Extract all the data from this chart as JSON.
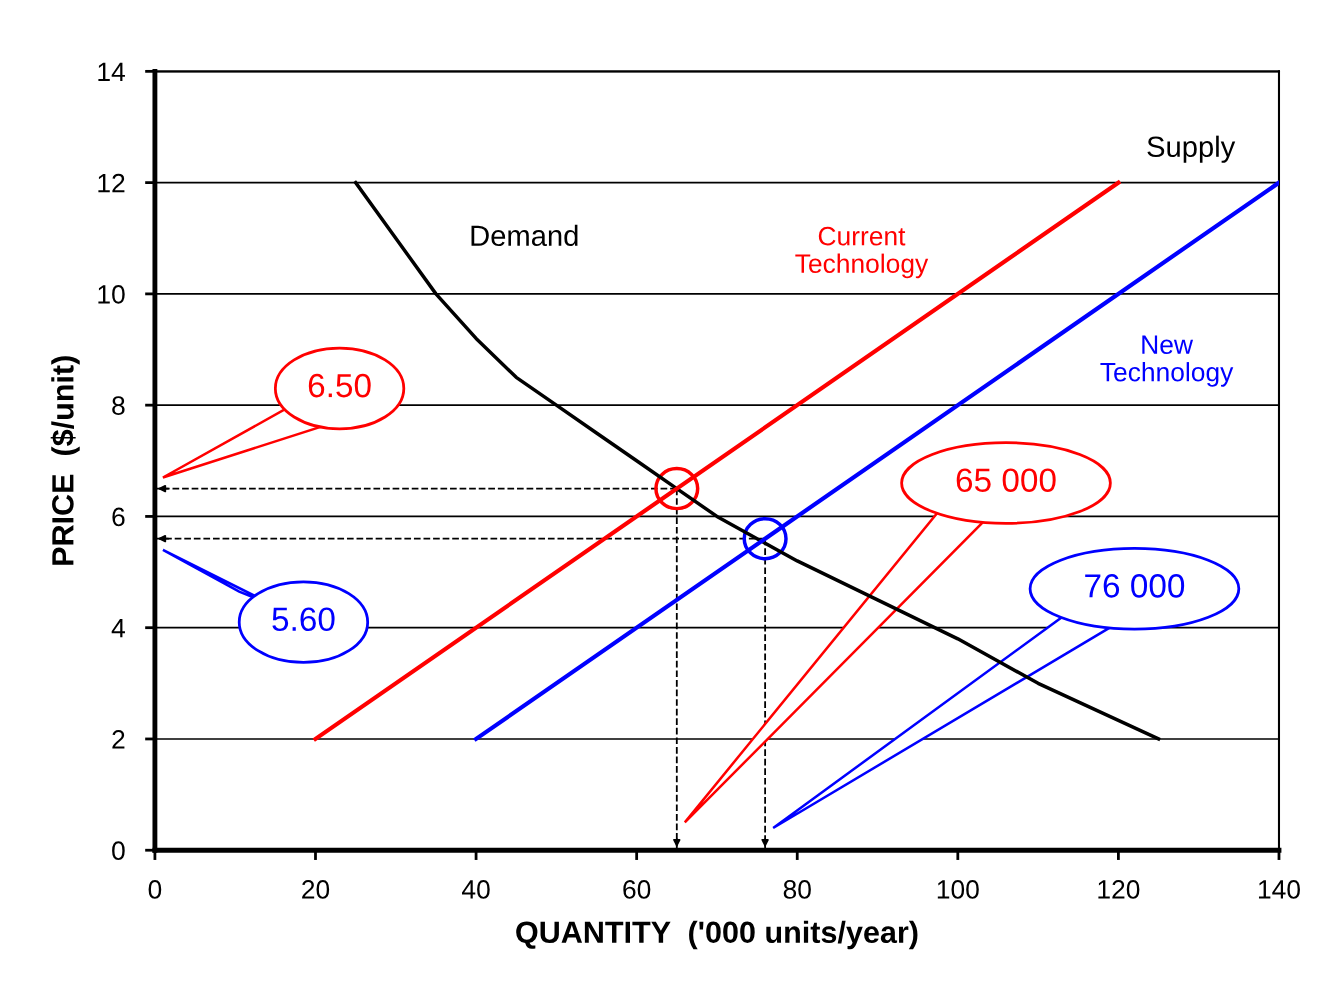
{
  "chart_data": {
    "type": "line",
    "xlabel": "QUANTITY  ('000 units/year)",
    "ylabel": "PRICE  ($/unit)",
    "xlim": [
      0,
      140
    ],
    "xticks": [
      0,
      20,
      40,
      60,
      80,
      100,
      120,
      140
    ],
    "ylim": [
      0,
      14
    ],
    "yticks": [
      0,
      2,
      4,
      6,
      8,
      10,
      12,
      14
    ],
    "grid": "y",
    "legend": false,
    "marker": "none",
    "line_style": "solid",
    "series": [
      {
        "name": "Demand",
        "color": "#000000",
        "x": [
          25,
          30,
          35,
          40,
          45,
          50,
          55,
          60,
          65,
          70,
          75,
          80,
          90,
          100,
          110,
          125
        ],
        "values": [
          12,
          11,
          10,
          9.2,
          8.5,
          8,
          7.5,
          7,
          6.5,
          6,
          5.6,
          5.2,
          4.5,
          3.8,
          3,
          2
        ]
      },
      {
        "name": "Current\nTechnology",
        "color": "#ff0000",
        "x": [
          20,
          120
        ],
        "values": [
          2,
          12
        ]
      },
      {
        "name": "New\nTechnology",
        "color": "#0000ff",
        "x": [
          40,
          140
        ],
        "values": [
          2,
          12
        ]
      }
    ],
    "ref_lines": [
      {
        "axis": "y",
        "value": 6.5,
        "color": "#000000",
        "line_style": "dashed"
      },
      {
        "axis": "x",
        "value": 65,
        "color": "#000000",
        "line_style": "dashed"
      },
      {
        "axis": "y",
        "value": 5.6,
        "color": "#000000",
        "line_style": "dashed"
      },
      {
        "axis": "x",
        "value": 76,
        "color": "#000000",
        "line_style": "dashed"
      }
    ],
    "annotations": [
      "Supply",
      "6.50",
      "65 000",
      "5.60",
      "76 000"
    ]
  }
}
